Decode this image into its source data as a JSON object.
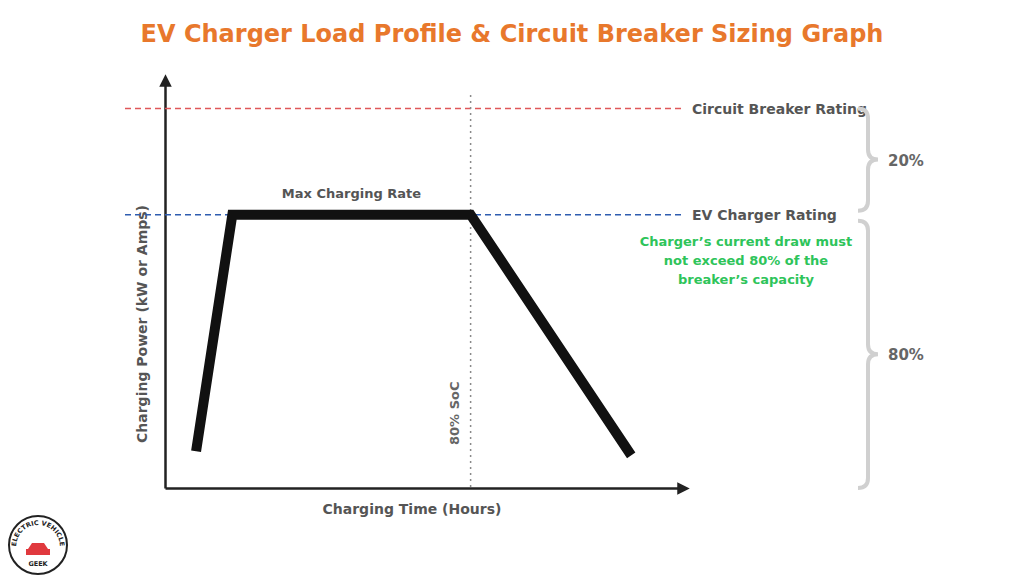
{
  "chart_data": {
    "type": "line",
    "title": "EV Charger Load Profile & Circuit Breaker Sizing Graph",
    "x_label": "Charging Time (Hours)",
    "y_label": "Charging Power (kW or Amps)",
    "x": [
      6,
      13,
      59,
      90
    ],
    "values": [
      9,
      67,
      67,
      8
    ],
    "color": "#111111",
    "line_style": "solid",
    "xlim": [
      0,
      100
    ],
    "ylim": [
      0,
      100
    ],
    "xticks": [],
    "yticks": [],
    "tick_labels": false,
    "grid": false,
    "hlines": [
      {
        "label": "Circuit Breaker Rating",
        "value": 93,
        "color": "#e0575a",
        "line_style": "dashed"
      },
      {
        "label": "EV Charger Rating",
        "value": 67,
        "color": "#2f5db0",
        "line_style": "dashed"
      }
    ],
    "vlines": [
      {
        "label": "80% SoC",
        "value": 59,
        "color": "#8a8a8a",
        "line_style": "dotted"
      }
    ],
    "annotations": {
      "max_rate": "Max Charging Rate",
      "note": [
        "Charger’s current draw must",
        "not exceed 80% of the",
        "breaker’s capacity"
      ],
      "note_color": "#2ec45a",
      "brace_labels": [
        "20%",
        "80%"
      ]
    }
  },
  "logo": {
    "top": "ELECTRIC VEHICLE",
    "bottom": "GEEK"
  }
}
